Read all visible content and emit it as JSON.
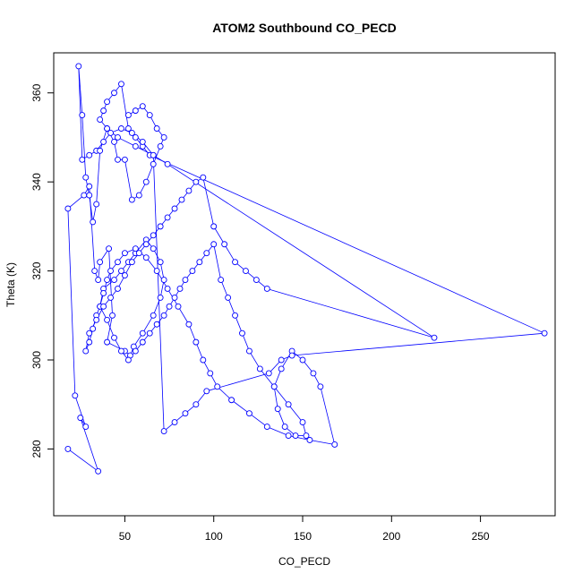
{
  "chart_data": {
    "type": "line",
    "title": "ATOM2 Southbound CO_PECD",
    "xlabel": "CO_PECD",
    "ylabel": "Theta (K)",
    "xlim": [
      10,
      292
    ],
    "ylim": [
      265,
      369
    ],
    "xticks": [
      50,
      100,
      150,
      200,
      250
    ],
    "yticks": [
      280,
      300,
      320,
      340,
      360
    ],
    "grid": false,
    "line_color": "#0000ff",
    "marker": "open-circle",
    "series": [
      {
        "x": [
          18,
          35,
          25,
          28,
          22,
          18,
          27,
          30,
          33,
          35,
          36,
          41,
          43,
          40,
          50,
          53,
          55,
          60,
          66,
          70,
          72,
          70,
          66,
          62,
          56,
          52,
          48,
          44,
          38,
          36,
          40,
          44,
          48,
          52,
          56,
          60,
          64,
          68,
          72,
          75,
          78,
          81,
          84,
          88,
          92,
          96,
          100,
          104,
          108,
          112,
          116,
          120,
          126,
          134,
          142,
          150,
          152,
          146,
          140,
          136,
          134,
          138,
          144,
          150,
          156,
          160,
          168,
          154,
          142,
          130,
          120,
          110,
          102,
          98,
          94,
          90,
          86,
          80,
          74,
          68,
          62,
          56,
          50,
          46,
          42,
          40,
          38,
          36,
          34,
          32,
          30,
          28,
          30,
          34,
          38,
          42,
          46,
          50,
          54,
          58,
          62,
          66,
          70,
          74,
          78,
          82,
          86,
          90,
          94,
          100,
          106,
          112,
          118,
          124,
          130,
          224,
          74,
          66,
          56,
          46,
          40,
          36,
          38,
          40,
          44,
          48,
          52,
          56,
          60,
          64,
          286,
          144,
          138,
          131,
          96,
          90,
          84,
          78,
          72,
          66,
          60,
          54,
          48,
          42,
          38,
          34,
          30,
          26,
          24,
          26,
          28,
          30,
          32,
          34,
          36,
          40,
          44,
          46,
          50,
          54,
          58,
          62,
          66,
          70,
          72,
          68,
          64,
          60,
          56,
          52
        ],
        "y": [
          280,
          275,
          287,
          285,
          292,
          334,
          337,
          339,
          320,
          318,
          322,
          325,
          310,
          304,
          302,
          301,
          303,
          306,
          310,
          314,
          318,
          322,
          325,
          327,
          324,
          322,
          320,
          318,
          316,
          312,
          309,
          305,
          302,
          300,
          302,
          304,
          306,
          308,
          310,
          312,
          314,
          316,
          318,
          320,
          322,
          324,
          326,
          318,
          314,
          310,
          306,
          302,
          298,
          294,
          290,
          286,
          283,
          283,
          285,
          289,
          294,
          298,
          302,
          300,
          297,
          294,
          281,
          282,
          283,
          285,
          288,
          291,
          294,
          297,
          300,
          304,
          308,
          312,
          316,
          320,
          323,
          325,
          324,
          322,
          320,
          318,
          315,
          312,
          310,
          307,
          304,
          302,
          306,
          309,
          312,
          314,
          316,
          319,
          322,
          324,
          326,
          328,
          330,
          332,
          334,
          336,
          338,
          340,
          341,
          330,
          326,
          322,
          320,
          318,
          316,
          305,
          344,
          346,
          348,
          350,
          352,
          354,
          356,
          358,
          360,
          362,
          352,
          350,
          348,
          346,
          306,
          301,
          300,
          297,
          293,
          290,
          288,
          286,
          284,
          346,
          349,
          351,
          352,
          351,
          349,
          347,
          346,
          345,
          366,
          355,
          341,
          337,
          331,
          335,
          347,
          352,
          349,
          345,
          345,
          336,
          337,
          340,
          344,
          348,
          350,
          352,
          355,
          357,
          356,
          355
        ]
      }
    ]
  }
}
